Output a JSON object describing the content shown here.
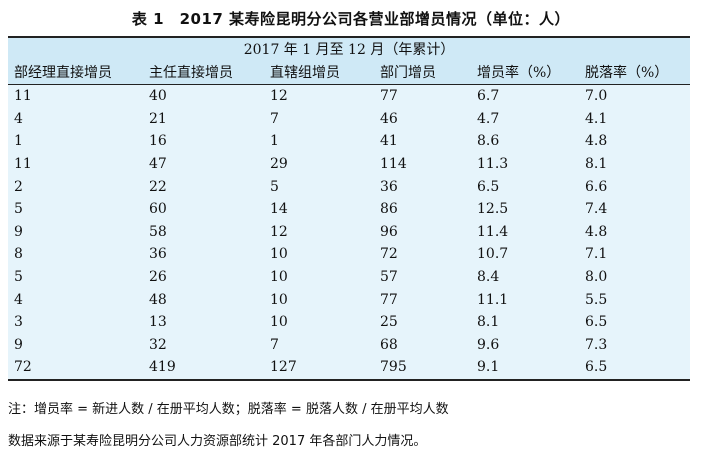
{
  "caption": "表 1　2017 某寿险昆明分公司各营业部增员情况（单位：人）",
  "table": {
    "period_header": "2017 年 1 月至 12 月（年累计）",
    "columns": [
      "部经理直接增员",
      "主任直接增员",
      "直辖组增员",
      "部门增员",
      "增员率（%）",
      "脱落率（%）"
    ],
    "rows": [
      [
        "11",
        "40",
        "12",
        "77",
        "6.7",
        "7.0"
      ],
      [
        "4",
        "21",
        "7",
        "46",
        "4.7",
        "4.1"
      ],
      [
        "1",
        "16",
        "1",
        "41",
        "8.6",
        "4.8"
      ],
      [
        "11",
        "47",
        "29",
        "114",
        "11.3",
        "8.1"
      ],
      [
        "2",
        "22",
        "5",
        "36",
        "6.5",
        "6.6"
      ],
      [
        "5",
        "60",
        "14",
        "86",
        "12.5",
        "7.4"
      ],
      [
        "9",
        "58",
        "12",
        "96",
        "11.4",
        "4.8"
      ],
      [
        "8",
        "36",
        "10",
        "72",
        "10.7",
        "7.1"
      ],
      [
        "5",
        "26",
        "10",
        "57",
        "8.4",
        "8.0"
      ],
      [
        "4",
        "48",
        "10",
        "77",
        "11.1",
        "5.5"
      ],
      [
        "3",
        "13",
        "10",
        "25",
        "8.1",
        "6.5"
      ],
      [
        "9",
        "32",
        "7",
        "68",
        "9.6",
        "7.3"
      ],
      [
        "72",
        "419",
        "127",
        "795",
        "9.1",
        "6.5"
      ]
    ]
  },
  "notes": {
    "formula": "注：增员率 = 新进人数 / 在册平均人数；脱落率 = 脱落人数 / 在册平均人数",
    "source": "数据来源于某寿险昆明分公司人力资源部统计 2017 年各部门人力情况。"
  },
  "colors": {
    "header_bg": "#cfe9f6",
    "body_bg": "#e6f4fb",
    "rule": "#222222"
  }
}
